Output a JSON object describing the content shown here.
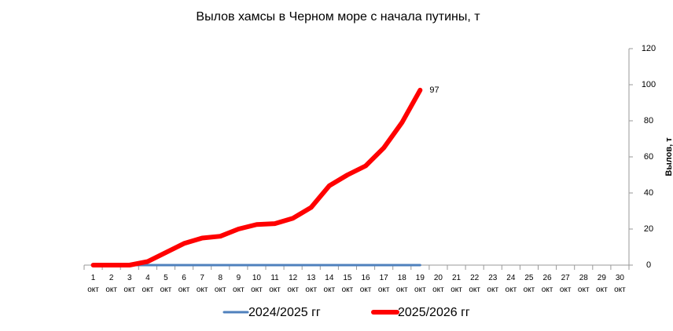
{
  "chart_data": {
    "type": "line",
    "title": "Вылов хамсы в Черном море с начала путины, т",
    "y_label": "Вылов, т",
    "categories": [
      "1 окт",
      "2 окт",
      "3 окт",
      "4 окт",
      "5 окт",
      "6 окт",
      "7 окт",
      "8 окт",
      "9 окт",
      "10 окт",
      "11 окт",
      "12 окт",
      "13 окт",
      "14 окт",
      "15 окт",
      "16 окт",
      "17 окт",
      "18 окт",
      "19 окт",
      "20 окт",
      "21 окт",
      "22 окт",
      "23 окт",
      "24 окт",
      "25 окт",
      "26 окт",
      "27 окт",
      "28 окт",
      "29 окт",
      "30 окт"
    ],
    "series": [
      {
        "name": "2024/2025 гг",
        "color": "#4f81bd",
        "width": 3,
        "values": [
          0,
          0,
          0,
          0,
          0,
          0,
          0,
          0,
          0,
          0,
          0,
          0,
          0,
          0,
          0,
          0,
          0,
          0,
          0,
          null,
          null,
          null,
          null,
          null,
          null,
          null,
          null,
          null,
          null,
          null
        ]
      },
      {
        "name": "2025/2026 гг",
        "color": "#ff0000",
        "width": 6,
        "values": [
          0,
          0,
          0,
          2,
          7,
          12,
          15,
          16,
          20,
          22.5,
          23,
          26,
          32,
          44,
          50,
          55,
          65,
          79,
          97,
          null,
          null,
          null,
          null,
          null,
          null,
          null,
          null,
          null,
          null,
          null
        ]
      }
    ],
    "label_point": [
      1,
      18
    ],
    "y_axis_side": "right",
    "ylim": [
      0,
      120
    ],
    "yticks": [
      0,
      20,
      40,
      60,
      80,
      100,
      120
    ],
    "grid": false
  }
}
